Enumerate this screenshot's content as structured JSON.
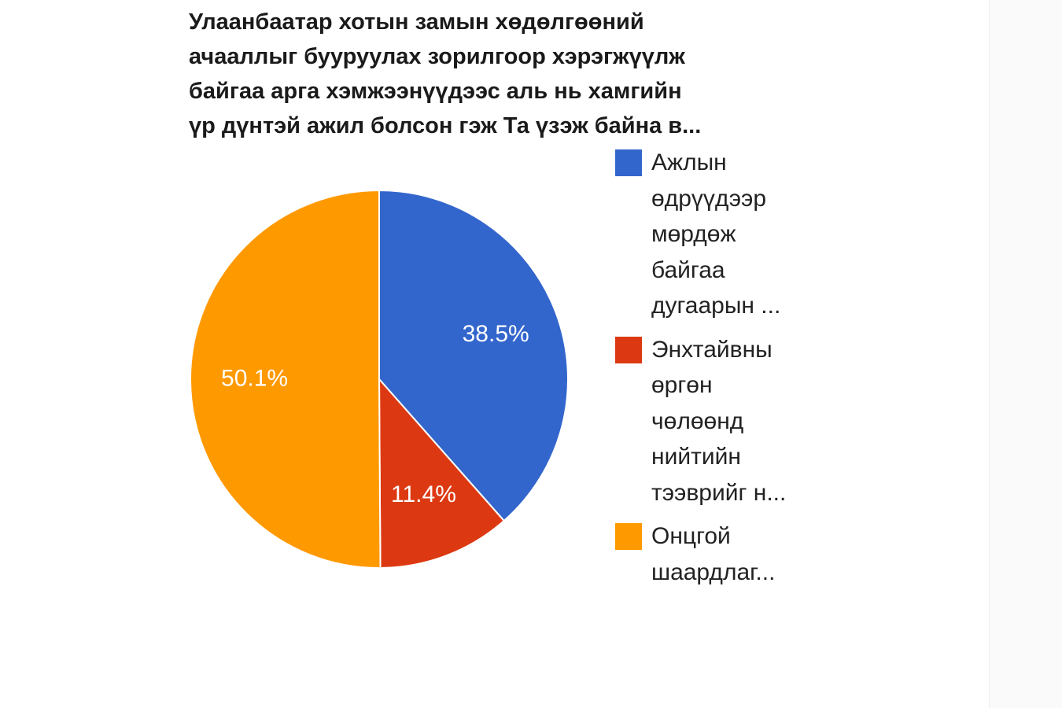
{
  "chart_data": {
    "type": "pie",
    "title_lines": [
      "Улаанбаатар хотын замын хөдөлгөөний",
      "ачааллыг бууруулах зорилгоор хэрэгжүүлж",
      "байгаа арга хэмжээнүүдээс аль нь хамгийн",
      "үр дүнтэй ажил болсон гэж Та үзэж байна в..."
    ],
    "slices": [
      {
        "label_lines": [
          "Ажлын",
          "өдрүүдээр",
          "мөрдөж",
          "байгаа",
          "дугаарын ..."
        ],
        "value": 38.5,
        "display": "38.5%",
        "color": "#3366cc"
      },
      {
        "label_lines": [
          "Энхтайвны",
          "өргөн",
          "чөлөөнд",
          "нийтийн",
          "тээврийг н..."
        ],
        "value": 11.4,
        "display": "11.4%",
        "color": "#dc3912"
      },
      {
        "label_lines": [
          "Онцгой",
          "шаардлаг..."
        ],
        "value": 50.1,
        "display": "50.1%",
        "color": "#ff9900"
      }
    ],
    "legend_position": "right",
    "start_angle": "12 o'clock",
    "direction": "clockwise"
  }
}
